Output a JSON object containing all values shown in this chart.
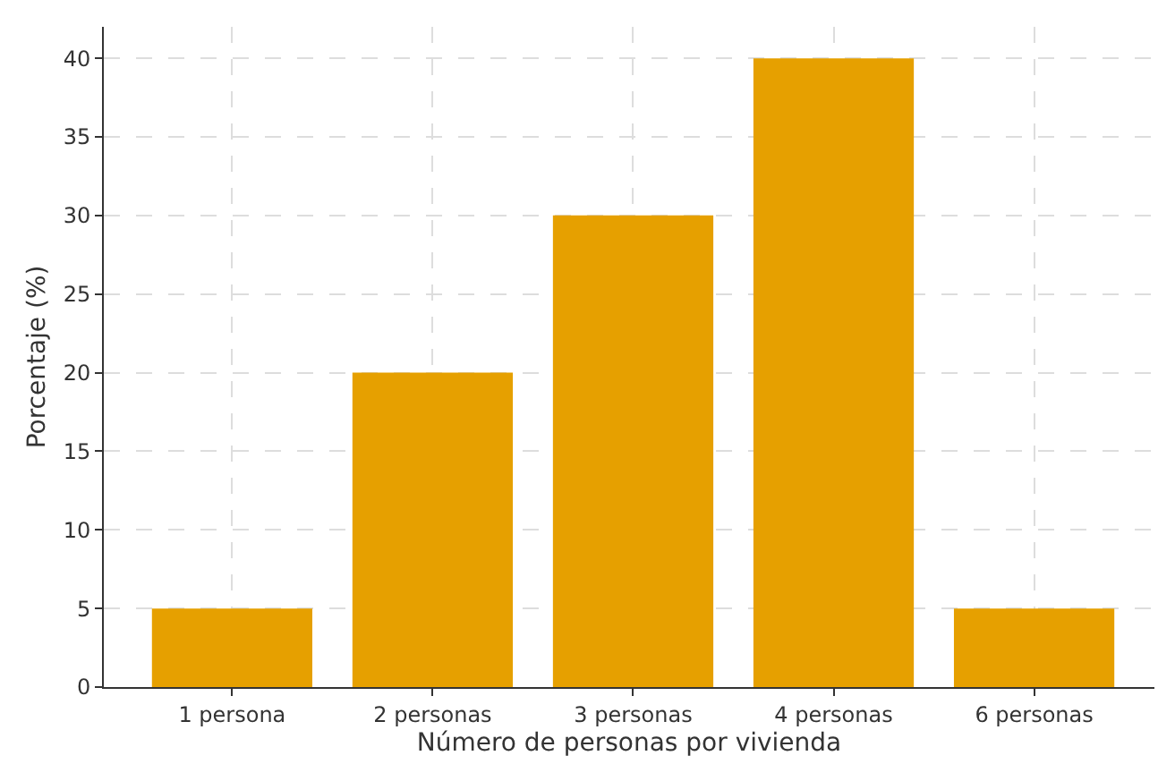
{
  "chart_data": {
    "type": "bar",
    "xlabel": "Número de personas por vivienda",
    "ylabel": "Porcentaje (%)",
    "categories": [
      "1 persona",
      "2 personas",
      "3 personas",
      "4 personas",
      "6 personas"
    ],
    "values": [
      5,
      20,
      30,
      40,
      5
    ],
    "color": "#e6a000",
    "ylim": [
      0,
      42
    ],
    "yticks": [
      0,
      5,
      10,
      15,
      20,
      25,
      30,
      35,
      40
    ],
    "grid": true
  }
}
